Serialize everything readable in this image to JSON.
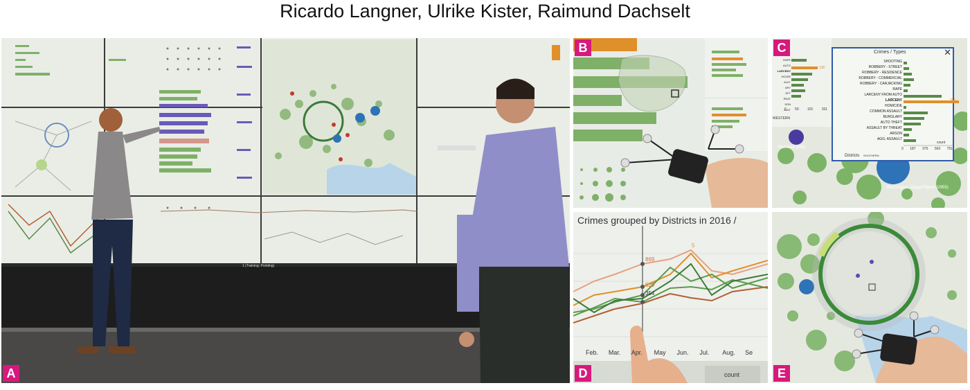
{
  "title": "Ricardo Langner, Ulrike Kister, Raimund Dachselt",
  "panels": {
    "a": {
      "label": "A",
      "wall_caption": "1 (Training: Pointing)"
    },
    "b": {
      "label": "B"
    },
    "c": {
      "label": "C",
      "popup_title": "Crimes / Types",
      "crime_types": [
        "SHOOTING",
        "ROBBERY - STREET",
        "ROBBERY - RESIDENCE",
        "ROBBERY - COMMERCIAL",
        "ROBBERY - CARJACKING",
        "RAPE",
        "LARCENY FROM AUTO",
        "LARCENY",
        "HOMICIDE",
        "COMMON ASSAULT",
        "BURGLARY",
        "AUTO THEFT",
        "ASSAULT BY THREAT",
        "ARSON",
        "AGG. ASSAULT"
      ],
      "x_ticks": [
        "0",
        "187",
        "375",
        "563",
        "751"
      ],
      "axis_label": "count",
      "highlight_value": "751",
      "districts_label": "Districts",
      "district_value": "SOUTHERN",
      "left_labels": [
        "RAPE",
        "AUTO",
        "LARCENY",
        "HICIDE",
        "AULT",
        "ARY",
        "EFT",
        "REAT",
        "SON",
        "AULT"
      ],
      "left_ticks": [
        "0",
        "50",
        "101",
        "151"
      ],
      "left_highlight": "136",
      "western_label": "WESTERN",
      "allendale_label": "Allendale (949)",
      "washington_label": "Washington Village/Pigtow (2955)",
      "close_icon": "close-icon"
    },
    "d": {
      "label": "D",
      "chart_title": "Crimes grouped by Districts in 2016 /",
      "x_labels": [
        "Feb.",
        "Mar.",
        "Apr.",
        "May",
        "Jun.",
        "Jul.",
        "Aug.",
        "Se"
      ],
      "value_labels": [
        "869",
        "529",
        "354",
        "5"
      ],
      "count_label": "count"
    },
    "e": {
      "label": "E"
    }
  },
  "colors": {
    "label_bg": "#d6197c",
    "bar_green": "#7fb068",
    "bar_orange": "#e0902a",
    "bar_purple": "#6a5ab8",
    "map_bg": "#e4e8df",
    "water": "#b8d4e8",
    "circle_blue": "#2e72b8"
  }
}
